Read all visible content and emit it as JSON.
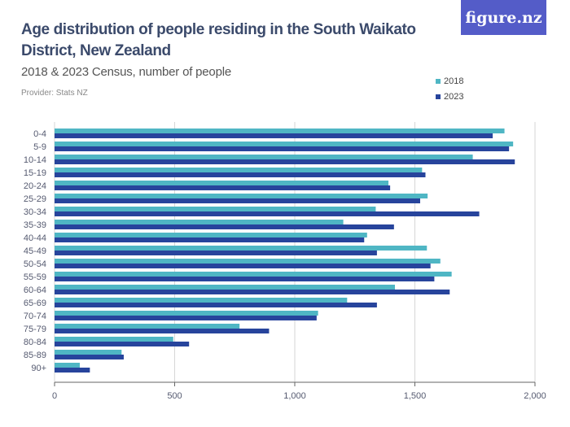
{
  "header": {
    "title": "Age distribution of people residing in the South Waikato District, New Zealand",
    "subtitle": "2018 & 2023 Census, number of people",
    "provider": "Provider: Stats NZ",
    "logo": "figure.nz"
  },
  "chart_data": {
    "type": "bar",
    "orientation": "horizontal",
    "title": "Age distribution of people residing in the South Waikato District, New Zealand",
    "subtitle": "2018 & 2023 Census, number of people",
    "xlim": [
      0,
      2000
    ],
    "xticks": [
      0,
      500,
      1000,
      1500,
      2000
    ],
    "xtick_labels": [
      "0",
      "500",
      "1,000",
      "1,500",
      "2,000"
    ],
    "grid": true,
    "legend_position": "top-right",
    "categories": [
      "0-4",
      "5-9",
      "10-14",
      "15-19",
      "20-24",
      "25-29",
      "30-34",
      "35-39",
      "40-44",
      "45-49",
      "50-54",
      "55-59",
      "60-64",
      "65-69",
      "70-74",
      "75-79",
      "80-84",
      "85-89",
      "90+"
    ],
    "series": [
      {
        "name": "2018",
        "color": "#4fb6c4",
        "values": [
          1873,
          1909,
          1741,
          1530,
          1390,
          1553,
          1337,
          1202,
          1301,
          1550,
          1606,
          1653,
          1417,
          1218,
          1097,
          770,
          494,
          279,
          105
        ]
      },
      {
        "name": "2023",
        "color": "#27449c",
        "values": [
          1824,
          1892,
          1916,
          1544,
          1397,
          1522,
          1768,
          1413,
          1289,
          1342,
          1565,
          1581,
          1645,
          1342,
          1091,
          893,
          560,
          288,
          147
        ]
      }
    ]
  }
}
